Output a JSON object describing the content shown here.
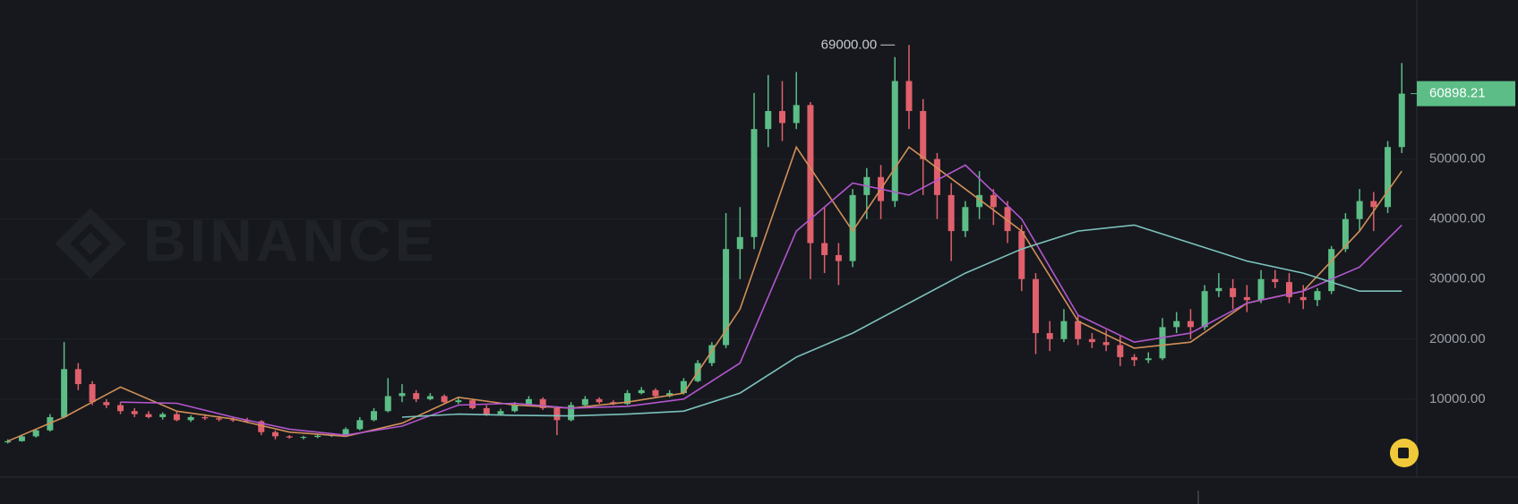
{
  "chart_data": {
    "type": "candlestick",
    "watermark": "BINANCE",
    "open": [
      2800,
      3000,
      3800,
      4800,
      7000,
      15000,
      12500,
      9500,
      9000,
      8000,
      7500,
      7000,
      7500,
      6500,
      7000,
      6800,
      6600,
      6500,
      6300,
      4500,
      3800,
      3600,
      3700,
      3900,
      4000,
      5000,
      6500,
      8000,
      10500,
      11000,
      10000,
      10500,
      9500,
      9800,
      8500,
      7500,
      8000,
      9000,
      10000,
      8500,
      6500,
      9000,
      10000,
      9500,
      9200,
      11000,
      11500,
      10500,
      11000,
      13000,
      16000,
      19000,
      35000,
      37000,
      55000,
      58000,
      56000,
      59000,
      36000,
      34000,
      33000,
      44000,
      47000,
      43000,
      63000,
      58000,
      50000,
      44000,
      38000,
      42000,
      44000,
      42000,
      38000,
      30000,
      21000,
      20000,
      23000,
      20000,
      19500,
      19000,
      17000,
      16500,
      16800,
      22000,
      23000,
      22000,
      28000,
      28500,
      27000,
      26500,
      30000,
      29500,
      27000,
      26500,
      28000,
      35000,
      40000,
      43000,
      42000,
      52000
    ],
    "high": [
      3300,
      4100,
      5000,
      7500,
      19500,
      16000,
      13000,
      10000,
      9500,
      8500,
      8000,
      7800,
      8000,
      7300,
      7500,
      7200,
      7000,
      6900,
      6500,
      4800,
      4000,
      3900,
      4100,
      4200,
      5300,
      7000,
      8500,
      13500,
      12500,
      11500,
      11000,
      10800,
      10200,
      10000,
      9000,
      8400,
      9500,
      10500,
      10300,
      8800,
      9500,
      10500,
      10300,
      9800,
      11500,
      12000,
      11800,
      11500,
      13500,
      16500,
      19500,
      41000,
      42000,
      61000,
      64000,
      63000,
      64500,
      59500,
      42000,
      36000,
      45000,
      48500,
      49000,
      67000,
      69000,
      60000,
      51000,
      46000,
      43000,
      48000,
      45000,
      43000,
      39000,
      31000,
      23000,
      25000,
      24000,
      21000,
      21500,
      20500,
      17500,
      17800,
      23500,
      24500,
      25000,
      29000,
      31000,
      30000,
      29000,
      31500,
      31500,
      31000,
      29000,
      28500,
      35500,
      41000,
      45000,
      44500,
      53000,
      66000
    ],
    "low": [
      2600,
      2900,
      3600,
      4600,
      6800,
      11500,
      9000,
      8500,
      7500,
      7000,
      6800,
      6600,
      6300,
      6200,
      6500,
      6300,
      6200,
      6000,
      4000,
      3300,
      3400,
      3300,
      3500,
      3700,
      3900,
      4800,
      6300,
      7800,
      9500,
      9500,
      9800,
      9200,
      9200,
      8300,
      7200,
      7300,
      7800,
      8800,
      8200,
      4000,
      6300,
      8800,
      9200,
      9000,
      9000,
      10800,
      10300,
      10300,
      10800,
      12800,
      15500,
      18500,
      30000,
      35000,
      52000,
      53000,
      55000,
      30000,
      31000,
      29000,
      32000,
      40000,
      40000,
      42000,
      55000,
      44000,
      40000,
      33000,
      37000,
      40000,
      39000,
      36000,
      28000,
      17500,
      18000,
      19500,
      19000,
      18500,
      18000,
      15500,
      15500,
      16000,
      16500,
      21000,
      20000,
      21500,
      27000,
      25000,
      24500,
      26000,
      28500,
      26000,
      25000,
      25500,
      27500,
      34500,
      38000,
      38000,
      41000,
      51000
    ],
    "close": [
      3000,
      3800,
      4800,
      7000,
      15000,
      12500,
      9500,
      9000,
      8000,
      7500,
      7000,
      7500,
      6500,
      7000,
      6800,
      6600,
      6500,
      6300,
      4500,
      3800,
      3600,
      3700,
      3900,
      4000,
      5000,
      6500,
      8000,
      10500,
      11000,
      10000,
      10500,
      9500,
      9800,
      8500,
      7500,
      8000,
      9000,
      10000,
      8500,
      6500,
      9000,
      10000,
      9500,
      9200,
      11000,
      11500,
      10500,
      11000,
      13000,
      16000,
      19000,
      35000,
      37000,
      55000,
      58000,
      56000,
      59000,
      36000,
      34000,
      33000,
      44000,
      47000,
      43000,
      63000,
      58000,
      50000,
      44000,
      38000,
      42000,
      44000,
      42000,
      38000,
      30000,
      21000,
      20000,
      23000,
      20000,
      19500,
      19000,
      17000,
      16500,
      16800,
      22000,
      23000,
      22000,
      28000,
      28500,
      27000,
      26500,
      30000,
      29500,
      27000,
      26500,
      28000,
      35000,
      40000,
      43000,
      42000,
      52000,
      60898.21
    ],
    "up_color": "#5cbd86",
    "down_color": "#e0606c",
    "series": [
      {
        "color": "#d18f58",
        "x": [
          0,
          4,
          8,
          12,
          16,
          20,
          24,
          28,
          32,
          36,
          40,
          44,
          48,
          52,
          56,
          60,
          64,
          68,
          72,
          76,
          80,
          84,
          88,
          92,
          96,
          99
        ],
        "values": [
          3000,
          7000,
          12000,
          8000,
          6700,
          4500,
          3800,
          6000,
          10300,
          9000,
          8500,
          9500,
          11000,
          25000,
          52000,
          38000,
          52000,
          45000,
          38000,
          23000,
          18500,
          19500,
          26000,
          28000,
          38000,
          48000
        ]
      },
      {
        "color": "#b356cf",
        "x": [
          0,
          4,
          8,
          12,
          16,
          20,
          24,
          28,
          32,
          36,
          40,
          44,
          48,
          52,
          56,
          60,
          64,
          68,
          72,
          76,
          80,
          84,
          88,
          92,
          96,
          99
        ],
        "values": [
          null,
          null,
          9500,
          9300,
          7000,
          5000,
          4000,
          5500,
          9000,
          9300,
          8500,
          8800,
          10000,
          16000,
          38000,
          46000,
          44000,
          49000,
          40000,
          24000,
          19500,
          21000,
          26000,
          28000,
          32000,
          39000
        ]
      },
      {
        "color": "#7cc2bd",
        "x": [
          0,
          4,
          8,
          12,
          16,
          20,
          24,
          28,
          32,
          36,
          40,
          44,
          48,
          52,
          56,
          60,
          64,
          68,
          72,
          76,
          80,
          84,
          88,
          92,
          96,
          99
        ],
        "values": [
          null,
          null,
          null,
          null,
          null,
          null,
          null,
          7000,
          7500,
          7300,
          7200,
          7500,
          8000,
          11000,
          17000,
          21000,
          26000,
          31000,
          35000,
          38000,
          39000,
          36000,
          33000,
          31000,
          28000,
          28000
        ]
      }
    ],
    "xlim": [
      -0.3,
      99.3
    ],
    "ylim": [
      -3000,
      76500
    ],
    "yticks": [
      {
        "value": 10000,
        "label": "10000.00"
      },
      {
        "value": 20000,
        "label": "20000.00"
      },
      {
        "value": 30000,
        "label": "30000.00"
      },
      {
        "value": 40000,
        "label": "40000.00"
      },
      {
        "value": 50000,
        "label": "50000.00"
      }
    ],
    "grid": true,
    "annotations": [
      {
        "x": 63,
        "value": 69000,
        "label": "69000.00"
      }
    ],
    "last_price": 60898.21,
    "last_price_color": "#5cbd86"
  }
}
